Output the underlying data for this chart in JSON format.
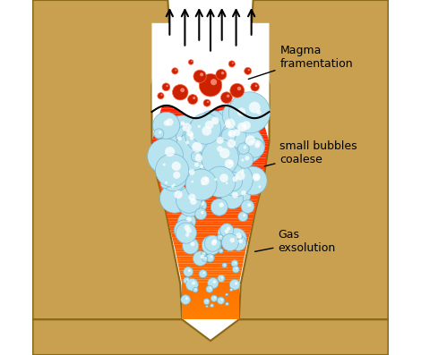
{
  "bg_color": "#ffffff",
  "rock_color": "#c8a050",
  "rock_outline": "#8B6914",
  "magma_orange_top": "#ff4500",
  "magma_orange_bottom": "#ffaa00",
  "fragmentation_zone_color": "#ffffff",
  "bubble_blue_color": "#b8e4f0",
  "bubble_blue_outline": "#7ab8d4",
  "magma_fragment_color": "#cc2200",
  "magma_fragment_outline": "#ff6644",
  "arrow_color": "#000000",
  "label_fragmentation": "Magma\nframentation",
  "label_bubbles": "small bubbles\ncoalese",
  "label_gas": "Gas\nexsolution"
}
